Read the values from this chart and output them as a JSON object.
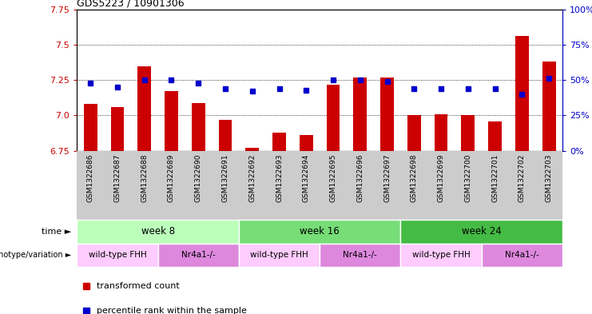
{
  "title": "GDS5223 / 10901306",
  "samples": [
    "GSM1322686",
    "GSM1322687",
    "GSM1322688",
    "GSM1322689",
    "GSM1322690",
    "GSM1322691",
    "GSM1322692",
    "GSM1322693",
    "GSM1322694",
    "GSM1322695",
    "GSM1322696",
    "GSM1322697",
    "GSM1322698",
    "GSM1322699",
    "GSM1322700",
    "GSM1322701",
    "GSM1322702",
    "GSM1322703"
  ],
  "red_values": [
    7.08,
    7.06,
    7.35,
    7.17,
    7.09,
    6.97,
    6.77,
    6.88,
    6.86,
    7.22,
    7.27,
    7.27,
    7.0,
    7.01,
    7.0,
    6.96,
    7.56,
    7.38
  ],
  "blue_values": [
    48,
    45,
    50,
    50,
    48,
    44,
    42,
    44,
    43,
    50,
    50,
    49,
    44,
    44,
    44,
    44,
    40,
    51
  ],
  "ylim_left": [
    6.75,
    7.75
  ],
  "ylim_right": [
    0,
    100
  ],
  "yticks_left": [
    6.75,
    7.0,
    7.25,
    7.5,
    7.75
  ],
  "yticks_right": [
    0,
    25,
    50,
    75,
    100
  ],
  "grid_values": [
    7.0,
    7.25,
    7.5
  ],
  "bar_color": "#cc0000",
  "dot_color": "#0000cc",
  "bar_bottom": 6.75,
  "time_labels": [
    "week 8",
    "week 16",
    "week 24"
  ],
  "time_ranges": [
    [
      0,
      6
    ],
    [
      6,
      12
    ],
    [
      12,
      18
    ]
  ],
  "time_colors": [
    "#bbffbb",
    "#77dd77",
    "#44bb44"
  ],
  "geno_labels": [
    "wild-type FHH",
    "Nr4a1-/-",
    "wild-type FHH",
    "Nr4a1-/-",
    "wild-type FHH",
    "Nr4a1-/-"
  ],
  "geno_ranges": [
    [
      0,
      3
    ],
    [
      3,
      6
    ],
    [
      6,
      9
    ],
    [
      9,
      12
    ],
    [
      12,
      15
    ],
    [
      15,
      18
    ]
  ],
  "geno_colors": [
    "#ffccff",
    "#dd88dd",
    "#ffccff",
    "#dd88dd",
    "#ffccff",
    "#dd88dd"
  ],
  "legend_items": [
    "transformed count",
    "percentile rank within the sample"
  ],
  "legend_colors": [
    "#cc0000",
    "#0000cc"
  ],
  "bg_color": "#ffffff",
  "sample_bg": "#cccccc"
}
